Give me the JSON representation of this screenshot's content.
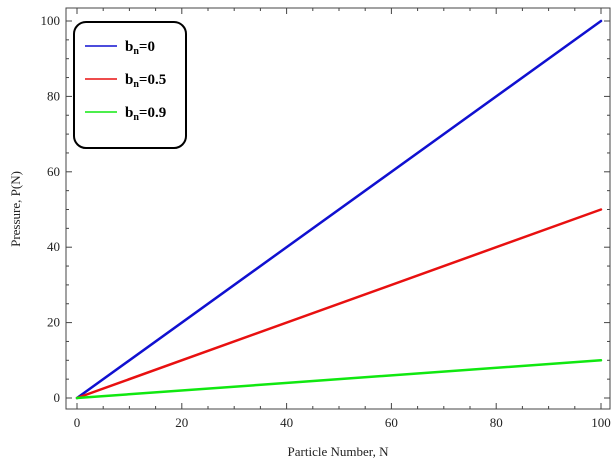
{
  "chart_data": {
    "type": "line",
    "xlabel": "Particle Number, N",
    "ylabel": "Pressure, P(N)",
    "xlim": [
      0,
      100
    ],
    "ylim": [
      0,
      100
    ],
    "xticks": [
      0,
      20,
      40,
      60,
      80,
      100
    ],
    "yticks": [
      0,
      20,
      40,
      60,
      80,
      100
    ],
    "grid": false,
    "legend_position": "top-left",
    "series": [
      {
        "name": "b_n=0",
        "label_main": "b",
        "label_sub": "n",
        "label_value": "=0",
        "color": "#1010d0",
        "x": [
          0,
          100
        ],
        "y": [
          0,
          100
        ]
      },
      {
        "name": "b_n=0.5",
        "label_main": "b",
        "label_sub": "n",
        "label_value": "=0.5",
        "color": "#e81010",
        "x": [
          0,
          100
        ],
        "y": [
          0,
          50
        ]
      },
      {
        "name": "b_n=0.9",
        "label_main": "b",
        "label_sub": "n",
        "label_value": "=0.9",
        "color": "#10e810",
        "x": [
          0,
          100
        ],
        "y": [
          0,
          10
        ]
      }
    ]
  }
}
